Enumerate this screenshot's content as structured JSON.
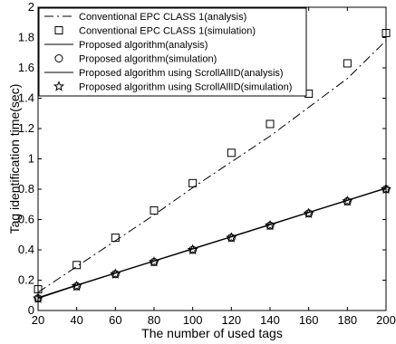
{
  "chart_data": {
    "type": "line",
    "xlabel": "The number of used tags",
    "ylabel": "Tag identification time(sec)",
    "xlim": [
      20,
      200
    ],
    "ylim": [
      0,
      2
    ],
    "xticks": [
      20,
      40,
      60,
      80,
      100,
      120,
      140,
      160,
      180,
      200
    ],
    "yticks": [
      0,
      0.2,
      0.4,
      0.6,
      0.8,
      1,
      1.2,
      1.4,
      1.6,
      1.8,
      2
    ],
    "xtick_labels": [
      "20",
      "40",
      "60",
      "80",
      "100",
      "120",
      "140",
      "160",
      "180",
      "200"
    ],
    "ytick_labels": [
      "0",
      "0.2",
      "0.4",
      "0.6",
      "0.8",
      "1",
      "1.2",
      "1.4",
      "1.6",
      "1.8",
      "2"
    ],
    "grid": false,
    "legend_position": "top-left",
    "x": [
      20,
      40,
      60,
      80,
      100,
      120,
      140,
      160,
      180,
      200
    ],
    "series": [
      {
        "name": "Conventional EPC CLASS 1(analysis)",
        "style": "dashdot",
        "marker": "none",
        "values": [
          0.12,
          0.29,
          0.46,
          0.63,
          0.81,
          0.98,
          1.15,
          1.34,
          1.53,
          1.78
        ]
      },
      {
        "name": "Conventional EPC CLASS 1(simulation)",
        "style": "none",
        "marker": "square",
        "values": [
          0.14,
          0.3,
          0.48,
          0.66,
          0.84,
          1.04,
          1.23,
          1.43,
          1.63,
          1.83
        ]
      },
      {
        "name": "Proposed algorithm(analysis)",
        "style": "solid",
        "marker": "none",
        "values": [
          0.08,
          0.165,
          0.245,
          0.325,
          0.405,
          0.485,
          0.565,
          0.645,
          0.725,
          0.805
        ]
      },
      {
        "name": "Proposed algorithm(simulation)",
        "style": "none",
        "marker": "circle",
        "values": [
          0.08,
          0.16,
          0.24,
          0.32,
          0.4,
          0.48,
          0.56,
          0.64,
          0.72,
          0.8
        ]
      },
      {
        "name": "Proposed algorithm using ScrollAllID(analysis)",
        "style": "solid",
        "marker": "none",
        "values": [
          0.085,
          0.168,
          0.248,
          0.328,
          0.408,
          0.488,
          0.568,
          0.648,
          0.728,
          0.808
        ]
      },
      {
        "name": "Proposed algorithm using ScrollAllID(simulation)",
        "style": "none",
        "marker": "star",
        "values": [
          0.08,
          0.16,
          0.24,
          0.32,
          0.4,
          0.48,
          0.56,
          0.64,
          0.72,
          0.8
        ]
      }
    ]
  }
}
